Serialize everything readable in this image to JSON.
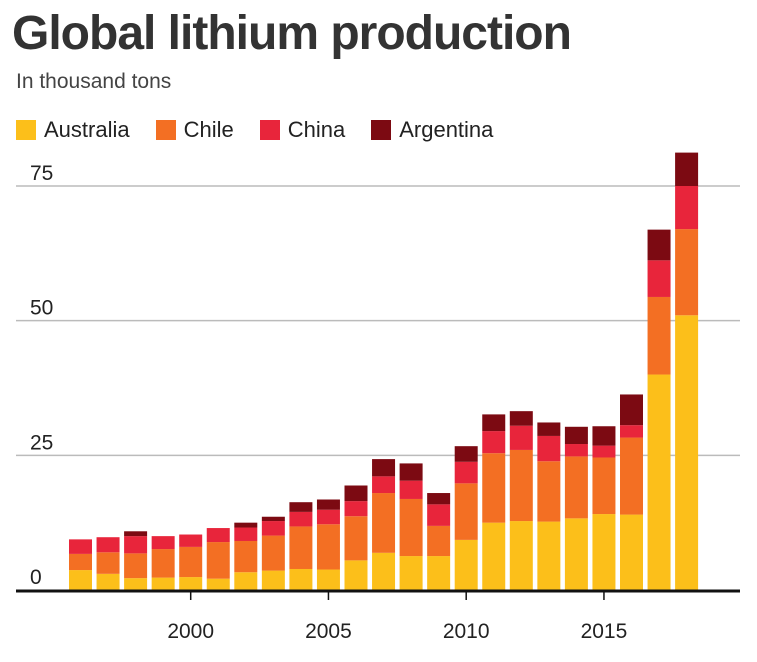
{
  "title": "Global lithium production",
  "subtitle": "In thousand tons",
  "colors": {
    "Australia": "#fcbf1a",
    "Chile": "#f36f23",
    "China": "#e8253b",
    "Argentina": "#7c0a12",
    "gridline": "#bbbbbb",
    "axis": "#111111",
    "text": "#222222"
  },
  "chart_data": {
    "type": "bar",
    "stacked": true,
    "title": "Global lithium production",
    "subtitle": "In thousand tons",
    "x": [
      1996,
      1997,
      1998,
      1999,
      2000,
      2001,
      2002,
      2003,
      2004,
      2005,
      2006,
      2007,
      2008,
      2009,
      2010,
      2011,
      2012,
      2013,
      2014,
      2015,
      2016,
      2017,
      2018
    ],
    "series": [
      {
        "name": "Australia",
        "values": [
          3.7,
          3.0,
          2.2,
          2.3,
          2.4,
          2.1,
          3.3,
          3.6,
          3.9,
          3.8,
          5.5,
          6.9,
          6.3,
          6.3,
          9.3,
          12.5,
          12.8,
          12.7,
          13.3,
          14.1,
          14.0,
          40.0,
          51.0
        ]
      },
      {
        "name": "Chile",
        "values": [
          3.0,
          4.0,
          4.6,
          5.3,
          5.6,
          6.8,
          5.8,
          6.5,
          7.9,
          8.4,
          8.2,
          11.1,
          10.6,
          5.6,
          10.5,
          12.9,
          13.2,
          11.2,
          11.5,
          10.5,
          14.3,
          14.4,
          16.0
        ]
      },
      {
        "name": "China",
        "values": [
          2.7,
          2.8,
          3.2,
          2.4,
          2.3,
          2.6,
          2.5,
          2.7,
          2.7,
          2.7,
          2.8,
          3.1,
          3.4,
          4.0,
          4.0,
          4.1,
          4.5,
          4.7,
          2.3,
          2.2,
          2.3,
          6.8,
          8.0
        ]
      },
      {
        "name": "Argentina",
        "values": [
          0.0,
          0.0,
          0.9,
          0.0,
          0.0,
          0.0,
          0.9,
          0.8,
          1.8,
          1.9,
          2.9,
          3.2,
          3.2,
          2.1,
          2.9,
          3.1,
          2.7,
          2.5,
          3.2,
          3.6,
          5.7,
          5.7,
          6.2
        ]
      }
    ],
    "ylim": [
      0,
      81
    ],
    "yticks": [
      0,
      25,
      50,
      75
    ],
    "xticks": [
      2000,
      2005,
      2010,
      2015
    ],
    "grid": true,
    "legend": "top"
  }
}
